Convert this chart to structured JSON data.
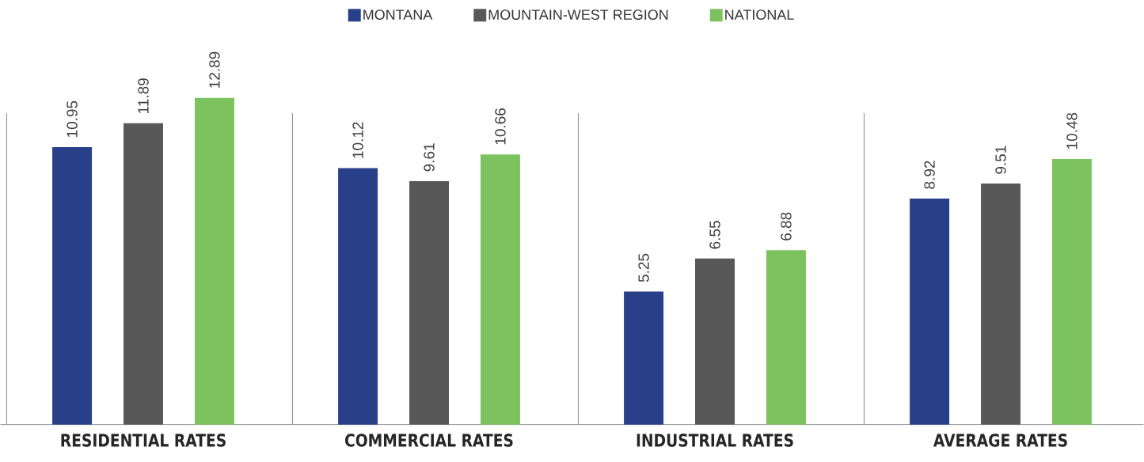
{
  "chart_data": {
    "type": "bar",
    "categories": [
      "RESIDENTIAL RATES",
      "COMMERCIAL RATES",
      "INDUSTRIAL  RATES",
      "AVERAGE  RATES"
    ],
    "series": [
      {
        "name": "MONTANA",
        "color": "#283f8a",
        "values": [
          10.95,
          10.12,
          5.25,
          8.92
        ]
      },
      {
        "name": "MOUNTAIN-WEST REGION",
        "color": "#585858",
        "values": [
          11.89,
          9.61,
          6.55,
          9.51
        ]
      },
      {
        "name": "NATIONAL",
        "color": "#7cc35f",
        "values": [
          12.89,
          10.66,
          6.88,
          10.48
        ]
      }
    ],
    "data_labels": true,
    "legend": "top"
  }
}
